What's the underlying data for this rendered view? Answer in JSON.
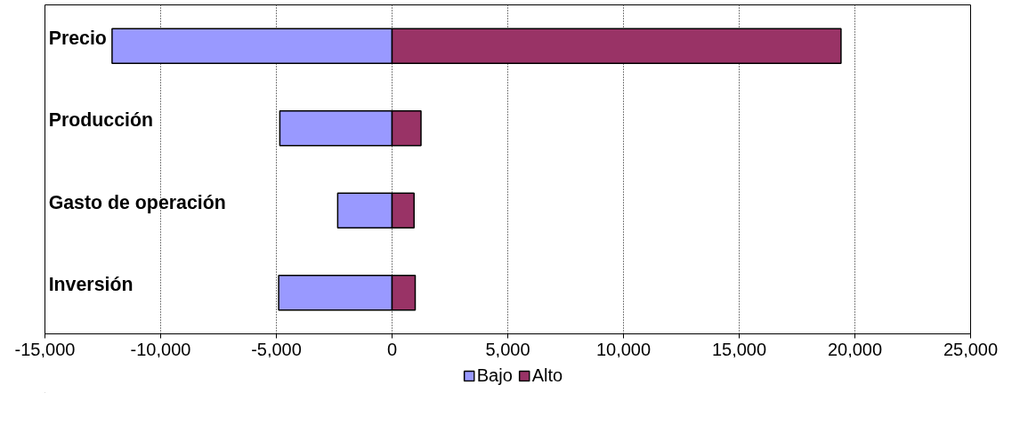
{
  "chart_data": {
    "type": "bar",
    "orientation": "horizontal",
    "stacked": true,
    "categories": [
      "Precio",
      "Producción",
      "Gasto de operación",
      "Inversión"
    ],
    "series": [
      {
        "name": "Bajo",
        "color": "#9999ff",
        "values": [
          -12100,
          -4850,
          -2350,
          -4900
        ]
      },
      {
        "name": "Alto",
        "color": "#993366",
        "values": [
          19400,
          1250,
          950,
          1000
        ]
      }
    ],
    "xlim": [
      -15000,
      25000
    ],
    "xticks": [
      {
        "value": -15000,
        "label": "-15,000"
      },
      {
        "value": -10000,
        "label": "-10,000"
      },
      {
        "value": -5000,
        "label": "-5,000"
      },
      0,
      {
        "value": 5000,
        "label": "5,000"
      },
      {
        "value": 10000,
        "label": "10,000"
      },
      {
        "value": 15000,
        "label": "15,000"
      },
      {
        "value": 20000,
        "label": "20,000"
      },
      {
        "value": 25000,
        "label": "25,000"
      }
    ],
    "grid": "x",
    "legend": "bottom"
  }
}
